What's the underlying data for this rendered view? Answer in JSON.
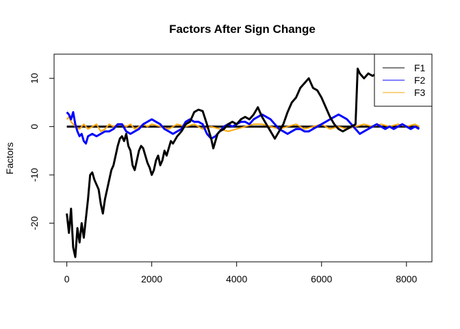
{
  "chart_data": {
    "type": "line",
    "title": "Factors After Sign Change",
    "xlabel": "",
    "ylabel": "Factors",
    "xlim": [
      -300,
      8600
    ],
    "ylim": [
      -28,
      15
    ],
    "xticks": [
      0,
      2000,
      4000,
      6000,
      8000
    ],
    "yticks": [
      -20,
      -10,
      0,
      10
    ],
    "xtick_labels": [
      "0",
      "2000",
      "4000",
      "6000",
      "8000"
    ],
    "ytick_labels": [
      "-20",
      "-10",
      "0",
      "10"
    ],
    "grid": false,
    "legend_position": "top-right",
    "legend": [
      "F1",
      "F2",
      "F3"
    ],
    "colors": {
      "F1": "#000000",
      "F2": "#0000ff",
      "F3": "#ffa500"
    },
    "series": [
      {
        "name": "F1",
        "color": "#000000",
        "x": [
          0,
          50,
          100,
          150,
          200,
          250,
          300,
          350,
          400,
          450,
          500,
          550,
          600,
          650,
          700,
          750,
          800,
          850,
          900,
          950,
          1000,
          1050,
          1100,
          1150,
          1200,
          1250,
          1300,
          1350,
          1400,
          1450,
          1500,
          1550,
          1600,
          1650,
          1700,
          1750,
          1800,
          1850,
          1900,
          1950,
          2000,
          2050,
          2100,
          2150,
          2200,
          2250,
          2300,
          2350,
          2400,
          2450,
          2500,
          2600,
          2700,
          2800,
          2900,
          3000,
          3100,
          3200,
          3300,
          3400,
          3450,
          3500,
          3550,
          3600,
          3700,
          3800,
          3900,
          4000,
          4100,
          4200,
          4300,
          4400,
          4500,
          4550,
          4600,
          4700,
          4800,
          4900,
          5000,
          5100,
          5200,
          5300,
          5400,
          5500,
          5600,
          5700,
          5800,
          5900,
          6000,
          6100,
          6200,
          6300,
          6400,
          6500,
          6600,
          6700,
          6800,
          6850,
          6900,
          7000,
          7100,
          7200,
          7300,
          7400,
          7500,
          7600,
          7700,
          7800,
          7900,
          8000,
          8100,
          8200,
          8300
        ],
        "y": [
          -18,
          -22,
          -17,
          -25,
          -27,
          -21,
          -24,
          -20,
          -23,
          -19,
          -15,
          -10,
          -9.5,
          -11,
          -12,
          -13,
          -16,
          -18,
          -15,
          -13,
          -11,
          -9,
          -8,
          -6,
          -4,
          -2.5,
          -2,
          -3,
          -1.5,
          -4,
          -5,
          -8,
          -9,
          -7,
          -5,
          -4,
          -4.5,
          -6,
          -7.5,
          -8.5,
          -10,
          -9,
          -7,
          -6,
          -8,
          -7,
          -5,
          -6,
          -4.5,
          -3,
          -3.5,
          -2,
          -1,
          0.5,
          1,
          3,
          3.5,
          3.2,
          0.5,
          -2.5,
          -4.5,
          -3,
          -1.5,
          -1,
          -0.5,
          0.5,
          1,
          0.5,
          1.5,
          2,
          1.5,
          2.5,
          4,
          3,
          2,
          0.5,
          -1,
          -2.5,
          -1,
          0.5,
          3,
          5,
          6,
          8,
          9,
          10,
          8,
          7.5,
          6,
          4,
          2,
          0.5,
          -0.5,
          -1,
          -0.5,
          0,
          0.5,
          12,
          11,
          10,
          11,
          10.5,
          11,
          11.5,
          12,
          11,
          12.5,
          11,
          12,
          11.5,
          11,
          11.5,
          11
        ]
      },
      {
        "name": "F2",
        "color": "#0000ff",
        "x": [
          0,
          50,
          100,
          150,
          200,
          250,
          300,
          350,
          400,
          450,
          500,
          600,
          700,
          800,
          900,
          1000,
          1100,
          1200,
          1300,
          1400,
          1500,
          1600,
          1700,
          1800,
          1900,
          2000,
          2100,
          2200,
          2300,
          2400,
          2500,
          2600,
          2700,
          2800,
          2900,
          3000,
          3100,
          3200,
          3300,
          3400,
          3500,
          3600,
          3700,
          3800,
          3900,
          4000,
          4100,
          4200,
          4300,
          4400,
          4500,
          4600,
          4700,
          4800,
          4900,
          5000,
          5100,
          5200,
          5300,
          5400,
          5500,
          5600,
          5700,
          5800,
          5900,
          6000,
          6100,
          6200,
          6300,
          6400,
          6500,
          6600,
          6700,
          6800,
          6900,
          7000,
          7100,
          7200,
          7300,
          7400,
          7500,
          7600,
          7700,
          7800,
          7900,
          8000,
          8100,
          8200,
          8300
        ],
        "y": [
          3,
          2.5,
          1.5,
          3,
          0.5,
          -1,
          -2,
          -1.5,
          -3,
          -3.5,
          -2,
          -1.5,
          -2,
          -1.5,
          -1,
          -1,
          -0.5,
          0.5,
          0.5,
          -1,
          -1.5,
          -1,
          -0.5,
          0.5,
          1,
          1.5,
          1,
          0.5,
          -0.5,
          -1,
          -1.5,
          -1,
          -0.5,
          1,
          1.5,
          1,
          1,
          0.5,
          -1.5,
          -2.5,
          -2,
          -1,
          0,
          0.5,
          0,
          0.5,
          1,
          1,
          0.5,
          1.5,
          2,
          2.5,
          2,
          1.5,
          0.5,
          -0.5,
          -1,
          -1.5,
          -1,
          -0.5,
          -0.5,
          -1,
          -1,
          -0.5,
          0,
          0.5,
          1,
          1.5,
          2,
          2.5,
          2,
          1.5,
          0.5,
          -0.5,
          -1.5,
          -1,
          -0.5,
          0,
          0.5,
          0,
          -0.5,
          0,
          -0.5,
          0,
          0.5,
          0,
          -0.5,
          0,
          -0.5
        ]
      },
      {
        "name": "F3",
        "color": "#ffa500",
        "x": [
          0,
          50,
          100,
          150,
          200,
          300,
          400,
          500,
          600,
          700,
          800,
          900,
          1000,
          1100,
          1200,
          1300,
          1400,
          1500,
          1600,
          1700,
          1800,
          1900,
          2000,
          2200,
          2400,
          2600,
          2800,
          3000,
          3200,
          3400,
          3600,
          3800,
          4000,
          4200,
          4400,
          4600,
          4800,
          5000,
          5200,
          5400,
          5600,
          5800,
          6000,
          6200,
          6400,
          6600,
          6800,
          7000,
          7200,
          7400,
          7600,
          7800,
          8000,
          8200,
          8300
        ],
        "y": [
          1.5,
          2,
          1,
          0.5,
          0,
          -0.5,
          0.5,
          -0.5,
          0,
          0.5,
          -1,
          -0.5,
          0.5,
          0,
          0.5,
          0.5,
          0,
          0.5,
          -0.5,
          0,
          0.5,
          0,
          0.5,
          0,
          -0.5,
          0.5,
          0,
          0.5,
          -0.5,
          0,
          -0.5,
          -1,
          -0.5,
          0,
          0.5,
          0.5,
          0,
          -0.5,
          0,
          0.5,
          -0.5,
          0,
          0.5,
          -0.5,
          0,
          -0.5,
          0,
          0.5,
          0,
          0.5,
          0,
          0.5,
          0,
          0.5,
          0
        ]
      }
    ],
    "baseline_lines": [
      {
        "name": "F1-baseline",
        "color": "#000000",
        "y": 0
      }
    ]
  }
}
